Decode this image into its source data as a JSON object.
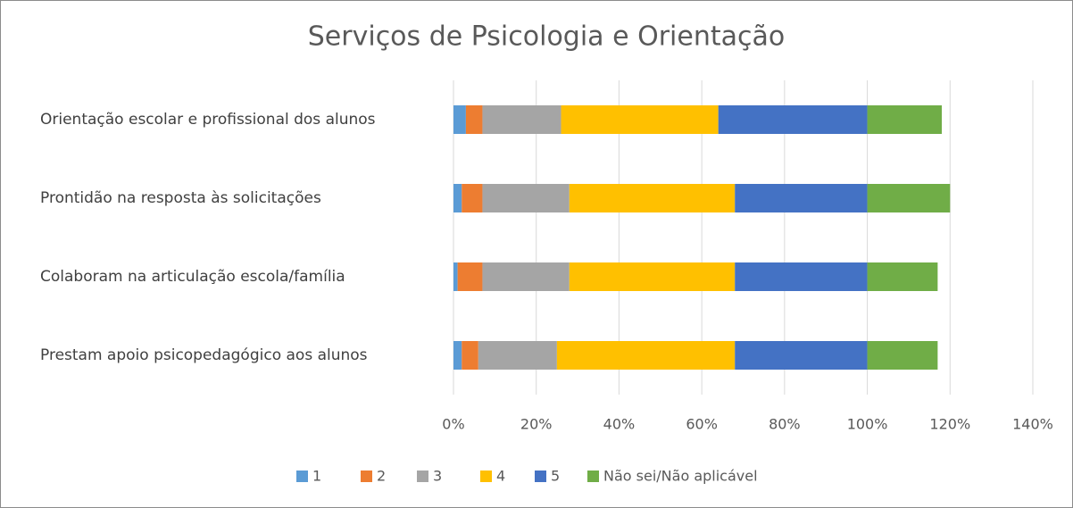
{
  "chart_data": {
    "type": "stacked_barh",
    "title": "Serviços de Psicologia e Orientação",
    "categories": [
      "Orientação escolar e profissional dos alunos",
      "Prontidão na resposta às solicitações",
      "Colaboram na articulação escola/família",
      "Prestam apoio psicopedagógico aos alunos"
    ],
    "series": [
      {
        "name": "1",
        "color": "#5b9bd5",
        "values": [
          3,
          2,
          1,
          2
        ]
      },
      {
        "name": "2",
        "color": "#ed7d31",
        "values": [
          4,
          5,
          6,
          4
        ]
      },
      {
        "name": "3",
        "color": "#a5a5a5",
        "values": [
          19,
          21,
          21,
          19
        ]
      },
      {
        "name": "4",
        "color": "#ffc000",
        "values": [
          38,
          40,
          40,
          43
        ]
      },
      {
        "name": "5",
        "color": "#4472c4",
        "values": [
          36,
          32,
          32,
          32
        ]
      },
      {
        "name": "Não sei/Não aplicável",
        "color": "#70ad47",
        "values": [
          18,
          20,
          17,
          17
        ]
      }
    ],
    "xlim": [
      0,
      140
    ],
    "xticks": [
      {
        "value": 0,
        "label": "0%"
      },
      {
        "value": 20,
        "label": "20%"
      },
      {
        "value": 40,
        "label": "40%"
      },
      {
        "value": 60,
        "label": "60%"
      },
      {
        "value": 80,
        "label": "80%"
      },
      {
        "value": 100,
        "label": "100%"
      },
      {
        "value": 120,
        "label": "120%"
      },
      {
        "value": 140,
        "label": "140%"
      }
    ],
    "grid": true,
    "legend": "bottom"
  }
}
